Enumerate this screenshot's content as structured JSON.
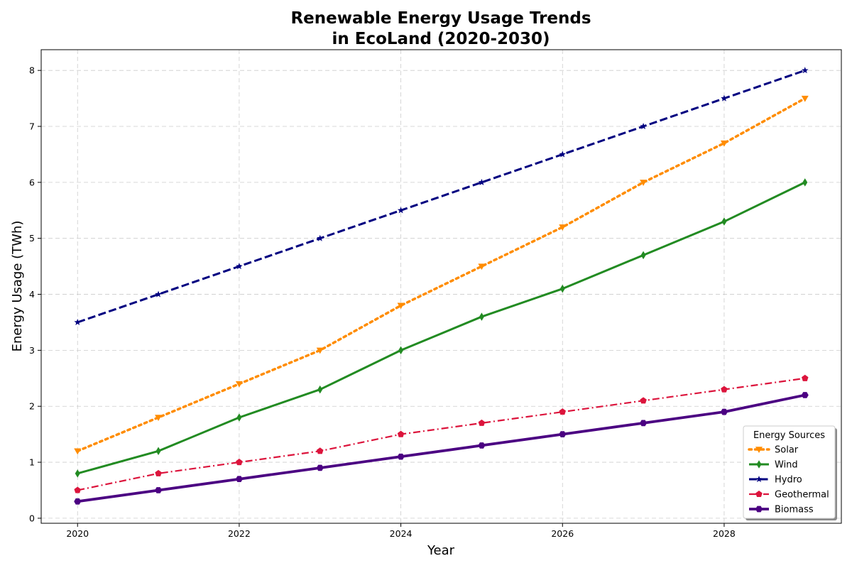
{
  "chart_data": {
    "type": "line",
    "title_lines": [
      "Renewable Energy Usage Trends",
      "in EcoLand (2020-2030)"
    ],
    "xlabel": "Year",
    "ylabel": "Energy Usage (TWh)",
    "x": [
      2020,
      2021,
      2022,
      2023,
      2024,
      2025,
      2026,
      2027,
      2028,
      2029
    ],
    "xlim": [
      2019.55,
      2029.45
    ],
    "ylim": [
      -0.09,
      8.37
    ],
    "xticks": [
      2020,
      2022,
      2024,
      2026,
      2028
    ],
    "yticks": [
      0,
      1,
      2,
      3,
      4,
      5,
      6,
      7,
      8
    ],
    "grid": true,
    "legend": {
      "title": "Energy Sources",
      "placement": "bottom-right"
    },
    "series": [
      {
        "name": "Solar",
        "values": [
          1.2,
          1.8,
          2.4,
          3.0,
          3.8,
          4.5,
          5.2,
          6.0,
          6.7,
          7.5
        ],
        "color": "#ff8c00",
        "linestyle": "dotted",
        "marker": "triangle-down"
      },
      {
        "name": "Wind",
        "values": [
          0.8,
          1.2,
          1.8,
          2.3,
          3.0,
          3.6,
          4.1,
          4.7,
          5.3,
          6.0
        ],
        "color": "#228b22",
        "linestyle": "solid",
        "marker": "thin-diamond"
      },
      {
        "name": "Hydro",
        "values": [
          3.5,
          4.0,
          4.5,
          5.0,
          5.5,
          6.0,
          6.5,
          7.0,
          7.5,
          8.0
        ],
        "color": "#000080",
        "linestyle": "dashed",
        "marker": "star"
      },
      {
        "name": "Geothermal",
        "values": [
          0.5,
          0.8,
          1.0,
          1.2,
          1.5,
          1.7,
          1.9,
          2.1,
          2.3,
          2.5
        ],
        "color": "#dc143c",
        "linestyle": "dashdot",
        "marker": "pentagon"
      },
      {
        "name": "Biomass",
        "values": [
          0.3,
          0.5,
          0.7,
          0.9,
          1.1,
          1.3,
          1.5,
          1.7,
          1.9,
          2.2
        ],
        "color": "#4b0082",
        "linestyle": "solid",
        "marker": "hexagon"
      }
    ]
  }
}
